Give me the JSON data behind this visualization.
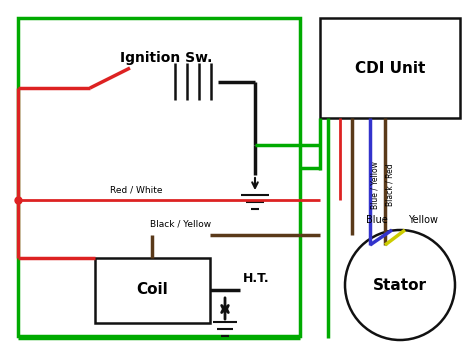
{
  "bg_color": "#ffffff",
  "colors": {
    "green": "#00aa00",
    "red": "#dd2222",
    "black": "#111111",
    "dark_brown": "#5a3a1a",
    "blue": "#3333cc",
    "yellow": "#cccc00",
    "white": "#ffffff"
  },
  "labels": {
    "ignition": "Ignition Sw.",
    "cdi": "CDI Unit",
    "coil": "Coil",
    "ht": "H.T.",
    "stator": "Stator",
    "red_white": "Red / White",
    "black_yellow": "Black / Yellow",
    "blue_label": "Blue",
    "yellow_label": "Yellow",
    "blue_yellow": "Blue / Yellow",
    "black_red": "Black / Red"
  }
}
